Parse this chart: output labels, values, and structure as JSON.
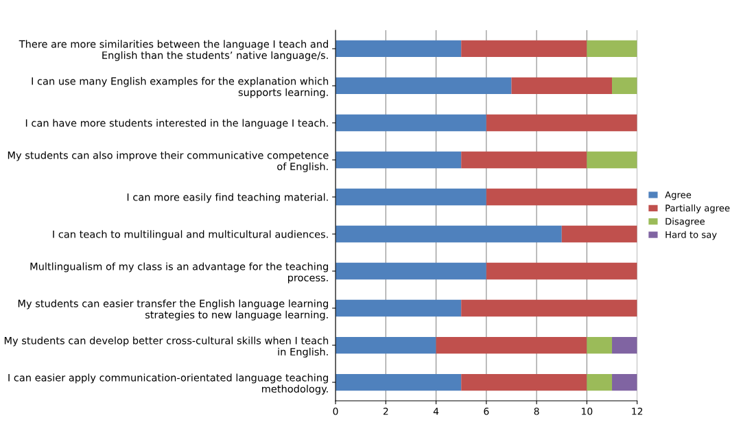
{
  "chart_data": {
    "type": "bar",
    "orientation": "horizontal",
    "stacked": true,
    "categories": [
      "There are more similarities between the language I teach and English than the students’ native language/s.",
      "I can use many English examples for the explanation which supports learning.",
      "I can have more students interested in the language I teach.",
      "My students can also improve their communicative competence of English.",
      "I can more easily find teaching material.",
      "I can teach to multilingual and multicultural audiences.",
      "Multlingualism of my class is an advantage for the teaching process.",
      "My students can easier transfer the English language learning strategies to new language learning.",
      "My students can develop better cross-cultural skills when I teach in English.",
      "I can easier apply communication-orientated language teaching methodology."
    ],
    "series": [
      {
        "name": "Agree",
        "color": "#4f81bd",
        "values": [
          5,
          7,
          6,
          5,
          6,
          9,
          6,
          5,
          4,
          5
        ]
      },
      {
        "name": "Partially agree",
        "color": "#c0504d",
        "values": [
          5,
          4,
          6,
          5,
          6,
          3,
          6,
          7,
          6,
          5
        ]
      },
      {
        "name": "Disagree",
        "color": "#9bbb59",
        "values": [
          2,
          1,
          0,
          2,
          0,
          0,
          0,
          0,
          1,
          1
        ]
      },
      {
        "name": "Hard to say",
        "color": "#8064a2",
        "values": [
          0,
          0,
          0,
          0,
          0,
          0,
          0,
          0,
          1,
          1
        ]
      }
    ],
    "xlim": [
      0,
      12
    ],
    "xticks": [
      0,
      2,
      4,
      6,
      8,
      10,
      12
    ],
    "grid": "x",
    "legend": "right"
  }
}
